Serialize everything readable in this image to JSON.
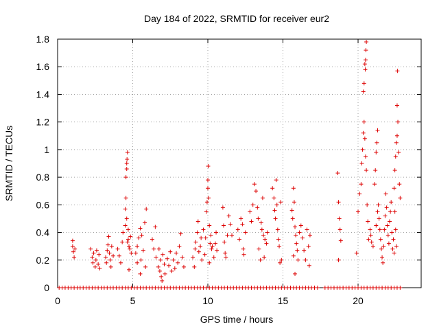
{
  "chart_data": {
    "type": "scatter",
    "title": "Day 184 of 2022, SRMTID for receiver eur2",
    "xlabel": "GPS time / hours",
    "ylabel": "SRMTID / TECUs",
    "xlim": [
      0,
      24.2
    ],
    "ylim": [
      0,
      1.8
    ],
    "x_ticks": [
      0,
      5,
      10,
      15,
      20
    ],
    "y_ticks": [
      0,
      0.2,
      0.4,
      0.6,
      0.8,
      1,
      1.2,
      1.4,
      1.6,
      1.8
    ],
    "x_tick_labels": [
      "0",
      "5",
      "10",
      "15",
      "20"
    ],
    "y_tick_labels": [
      "0",
      "0.2",
      "0.4",
      "0.6",
      "0.8",
      "1",
      "1.2",
      "1.4",
      "1.6",
      "1.8"
    ],
    "grid": true,
    "marker": "+",
    "series": [
      {
        "name": "SRMTID",
        "color": "#dd0000",
        "points": [
          [
            1.0,
            0.34
          ],
          [
            1.0,
            0.3
          ],
          [
            1.05,
            0.26
          ],
          [
            1.1,
            0.22
          ],
          [
            1.15,
            0.28
          ],
          [
            2.2,
            0.28
          ],
          [
            2.3,
            0.22
          ],
          [
            2.35,
            0.18
          ],
          [
            2.4,
            0.25
          ],
          [
            2.5,
            0.15
          ],
          [
            2.55,
            0.2
          ],
          [
            2.6,
            0.27
          ],
          [
            2.7,
            0.17
          ],
          [
            2.75,
            0.24
          ],
          [
            2.8,
            0.14
          ],
          [
            3.2,
            0.22
          ],
          [
            3.25,
            0.18
          ],
          [
            3.3,
            0.27
          ],
          [
            3.35,
            0.31
          ],
          [
            3.4,
            0.37
          ],
          [
            3.45,
            0.25
          ],
          [
            3.5,
            0.2
          ],
          [
            3.55,
            0.15
          ],
          [
            3.6,
            0.3
          ],
          [
            3.7,
            0.23
          ],
          [
            4.0,
            0.28
          ],
          [
            4.1,
            0.23
          ],
          [
            4.2,
            0.18
          ],
          [
            4.3,
            0.33
          ],
          [
            4.35,
            0.4
          ],
          [
            4.5,
            0.45
          ],
          [
            4.5,
            0.57
          ],
          [
            4.55,
            0.65
          ],
          [
            4.55,
            0.8
          ],
          [
            4.6,
            0.86
          ],
          [
            4.6,
            0.9
          ],
          [
            4.62,
            0.93
          ],
          [
            4.65,
            0.98
          ],
          [
            4.7,
            0.42
          ],
          [
            4.7,
            0.35
          ],
          [
            4.75,
            0.3
          ],
          [
            4.8,
            0.28
          ],
          [
            4.85,
            0.37
          ],
          [
            4.9,
            0.25
          ],
          [
            4.6,
            0.5
          ],
          [
            4.65,
            0.33
          ],
          [
            4.75,
            0.13
          ],
          [
            5.2,
            0.25
          ],
          [
            5.3,
            0.3
          ],
          [
            5.4,
            0.36
          ],
          [
            5.5,
            0.43
          ],
          [
            5.55,
            0.2
          ],
          [
            5.6,
            0.38
          ],
          [
            5.7,
            0.27
          ],
          [
            5.8,
            0.47
          ],
          [
            5.9,
            0.57
          ],
          [
            5.85,
            0.15
          ],
          [
            5.3,
            0.18
          ],
          [
            5.5,
            0.1
          ],
          [
            6.3,
            0.35
          ],
          [
            6.4,
            0.28
          ],
          [
            6.5,
            0.44
          ],
          [
            6.55,
            0.22
          ],
          [
            6.7,
            0.15
          ],
          [
            6.8,
            0.12
          ],
          [
            6.85,
            0.2
          ],
          [
            6.9,
            0.08
          ],
          [
            7.0,
            0.24
          ],
          [
            7.1,
            0.17
          ],
          [
            7.15,
            0.1
          ],
          [
            6.75,
            0.28
          ],
          [
            6.95,
            0.05
          ],
          [
            7.3,
            0.21
          ],
          [
            7.4,
            0.16
          ],
          [
            7.5,
            0.26
          ],
          [
            7.6,
            0.12
          ],
          [
            7.7,
            0.2
          ],
          [
            7.8,
            0.14
          ],
          [
            7.9,
            0.25
          ],
          [
            8.0,
            0.18
          ],
          [
            8.1,
            0.3
          ],
          [
            8.2,
            0.39
          ],
          [
            8.3,
            0.22
          ],
          [
            8.4,
            0.15
          ],
          [
            9.0,
            0.22
          ],
          [
            9.1,
            0.15
          ],
          [
            9.15,
            0.28
          ],
          [
            9.2,
            0.33
          ],
          [
            9.3,
            0.4
          ],
          [
            9.35,
            0.48
          ],
          [
            9.4,
            0.26
          ],
          [
            9.5,
            0.3
          ],
          [
            9.55,
            0.36
          ],
          [
            9.6,
            0.2
          ],
          [
            9.7,
            0.42
          ],
          [
            9.8,
            0.24
          ],
          [
            9.85,
            0.36
          ],
          [
            9.9,
            0.55
          ],
          [
            9.95,
            0.62
          ],
          [
            10.0,
            0.72
          ],
          [
            10.0,
            0.78
          ],
          [
            10.02,
            0.88
          ],
          [
            10.05,
            0.65
          ],
          [
            10.1,
            0.45
          ],
          [
            10.15,
            0.32
          ],
          [
            10.2,
            0.38
          ],
          [
            10.25,
            0.28
          ],
          [
            10.3,
            0.3
          ],
          [
            10.4,
            0.22
          ],
          [
            10.5,
            0.32
          ],
          [
            10.55,
            0.4
          ],
          [
            10.6,
            0.27
          ],
          [
            10.1,
            0.18
          ],
          [
            11.0,
            0.58
          ],
          [
            11.05,
            0.45
          ],
          [
            11.1,
            0.33
          ],
          [
            11.15,
            0.25
          ],
          [
            11.2,
            0.22
          ],
          [
            11.3,
            0.38
          ],
          [
            11.4,
            0.52
          ],
          [
            11.5,
            0.46
          ],
          [
            11.6,
            0.38
          ],
          [
            12.0,
            0.42
          ],
          [
            12.1,
            0.35
          ],
          [
            12.2,
            0.5
          ],
          [
            12.3,
            0.46
          ],
          [
            12.35,
            0.28
          ],
          [
            12.4,
            0.24
          ],
          [
            12.5,
            0.4
          ],
          [
            12.8,
            0.55
          ],
          [
            12.9,
            0.48
          ],
          [
            13.0,
            0.6
          ],
          [
            13.1,
            0.75
          ],
          [
            13.2,
            0.7
          ],
          [
            13.3,
            0.58
          ],
          [
            13.35,
            0.5
          ],
          [
            13.4,
            0.28
          ],
          [
            13.5,
            0.2
          ],
          [
            13.55,
            0.47
          ],
          [
            13.6,
            0.42
          ],
          [
            13.7,
            0.38
          ],
          [
            13.8,
            0.35
          ],
          [
            13.9,
            0.32
          ],
          [
            13.95,
            0.4
          ],
          [
            13.75,
            0.22
          ],
          [
            13.65,
            0.65
          ],
          [
            14.3,
            0.72
          ],
          [
            14.4,
            0.65
          ],
          [
            14.45,
            0.56
          ],
          [
            14.5,
            0.5
          ],
          [
            14.55,
            0.78
          ],
          [
            14.6,
            0.6
          ],
          [
            14.65,
            0.42
          ],
          [
            14.7,
            0.35
          ],
          [
            14.75,
            0.3
          ],
          [
            14.8,
            0.18
          ],
          [
            14.9,
            0.2
          ],
          [
            14.85,
            0.62
          ],
          [
            15.6,
            0.56
          ],
          [
            15.65,
            0.5
          ],
          [
            15.7,
            0.72
          ],
          [
            15.75,
            0.62
          ],
          [
            15.8,
            0.44
          ],
          [
            15.85,
            0.38
          ],
          [
            15.9,
            0.32
          ],
          [
            15.95,
            0.27
          ],
          [
            16.0,
            0.2
          ],
          [
            15.8,
            0.1
          ],
          [
            15.7,
            0.23
          ],
          [
            16.1,
            0.4
          ],
          [
            16.2,
            0.45
          ],
          [
            16.3,
            0.36
          ],
          [
            16.4,
            0.27
          ],
          [
            16.5,
            0.2
          ],
          [
            16.6,
            0.42
          ],
          [
            16.7,
            0.3
          ],
          [
            16.75,
            0.16
          ],
          [
            16.8,
            0.38
          ],
          [
            18.65,
            0.83
          ],
          [
            18.7,
            0.62
          ],
          [
            18.75,
            0.5
          ],
          [
            18.8,
            0.42
          ],
          [
            18.85,
            0.34
          ],
          [
            18.7,
            0.2
          ],
          [
            19.9,
            0.25
          ],
          [
            20.0,
            0.55
          ],
          [
            20.1,
            0.68
          ],
          [
            20.2,
            0.75
          ],
          [
            20.25,
            0.9
          ],
          [
            20.3,
            1.0
          ],
          [
            20.35,
            1.12
          ],
          [
            20.4,
            1.2
          ],
          [
            20.45,
            1.08
          ],
          [
            20.5,
            0.95
          ],
          [
            20.55,
            0.85
          ],
          [
            20.6,
            0.6
          ],
          [
            20.65,
            0.48
          ],
          [
            20.7,
            0.35
          ],
          [
            20.35,
            1.42
          ],
          [
            20.4,
            1.48
          ],
          [
            20.45,
            1.62
          ],
          [
            20.5,
            1.65
          ],
          [
            20.52,
            1.72
          ],
          [
            20.55,
            1.78
          ],
          [
            20.48,
            1.58
          ],
          [
            20.8,
            0.42
          ],
          [
            20.85,
            0.38
          ],
          [
            20.9,
            0.33
          ],
          [
            21.0,
            0.3
          ],
          [
            21.1,
            0.75
          ],
          [
            21.15,
            0.85
          ],
          [
            21.2,
            0.98
          ],
          [
            21.25,
            1.05
          ],
          [
            21.3,
            1.14
          ],
          [
            21.2,
            0.45
          ],
          [
            21.3,
            0.55
          ],
          [
            21.35,
            0.6
          ],
          [
            21.4,
            0.5
          ],
          [
            21.45,
            0.42
          ],
          [
            21.5,
            0.35
          ],
          [
            21.55,
            0.28
          ],
          [
            21.6,
            0.22
          ],
          [
            21.65,
            0.18
          ],
          [
            21.7,
            0.3
          ],
          [
            21.75,
            0.42
          ],
          [
            21.8,
            0.52
          ],
          [
            21.85,
            0.68
          ],
          [
            21.9,
            0.58
          ],
          [
            21.95,
            0.45
          ],
          [
            22.0,
            0.38
          ],
          [
            22.05,
            0.32
          ],
          [
            22.1,
            0.48
          ],
          [
            22.15,
            0.55
          ],
          [
            22.2,
            0.62
          ],
          [
            22.25,
            0.4
          ],
          [
            22.3,
            0.28
          ],
          [
            22.35,
            0.35
          ],
          [
            22.4,
            0.72
          ],
          [
            22.45,
            0.85
          ],
          [
            22.5,
            0.95
          ],
          [
            22.55,
            1.05
          ],
          [
            22.6,
            1.1
          ],
          [
            22.65,
            1.2
          ],
          [
            22.6,
            1.32
          ],
          [
            22.62,
            1.57
          ],
          [
            22.7,
            0.98
          ],
          [
            22.75,
            0.75
          ],
          [
            22.8,
            0.65
          ],
          [
            22.45,
            0.55
          ],
          [
            22.5,
            0.42
          ],
          [
            22.55,
            0.3
          ],
          [
            22.4,
            0.25
          ]
        ],
        "zero_points_x": [
          0.1,
          0.3,
          0.5,
          0.7,
          0.9,
          1.1,
          1.3,
          1.5,
          1.7,
          1.9,
          2.1,
          2.3,
          2.5,
          2.7,
          2.9,
          3.1,
          3.3,
          3.5,
          3.7,
          3.9,
          4.1,
          4.3,
          4.5,
          4.7,
          4.9,
          5.1,
          5.3,
          5.5,
          5.7,
          5.9,
          6.1,
          6.3,
          6.5,
          6.7,
          6.9,
          7.1,
          7.3,
          7.5,
          7.7,
          7.9,
          8.1,
          8.3,
          8.5,
          8.7,
          8.9,
          9.1,
          9.3,
          9.5,
          9.7,
          9.9,
          10.1,
          10.3,
          10.5,
          10.7,
          10.9,
          11.1,
          11.3,
          11.5,
          11.7,
          11.9,
          12.1,
          12.3,
          12.5,
          12.7,
          12.9,
          13.1,
          13.3,
          13.5,
          13.7,
          13.9,
          14.1,
          14.3,
          14.5,
          14.7,
          14.9,
          15.1,
          15.3,
          15.5,
          15.7,
          15.9,
          16.1,
          16.3,
          16.5,
          16.7,
          16.9,
          17.1,
          17.3,
          17.8,
          18.0,
          18.2,
          18.4,
          18.6,
          18.8,
          19.0,
          19.2,
          19.4,
          19.6,
          19.8,
          20.0,
          20.2,
          20.4,
          20.6,
          20.8,
          21.0,
          21.2,
          21.4,
          21.6,
          21.8,
          22.0,
          22.2,
          22.4,
          22.6,
          22.8
        ]
      }
    ]
  }
}
